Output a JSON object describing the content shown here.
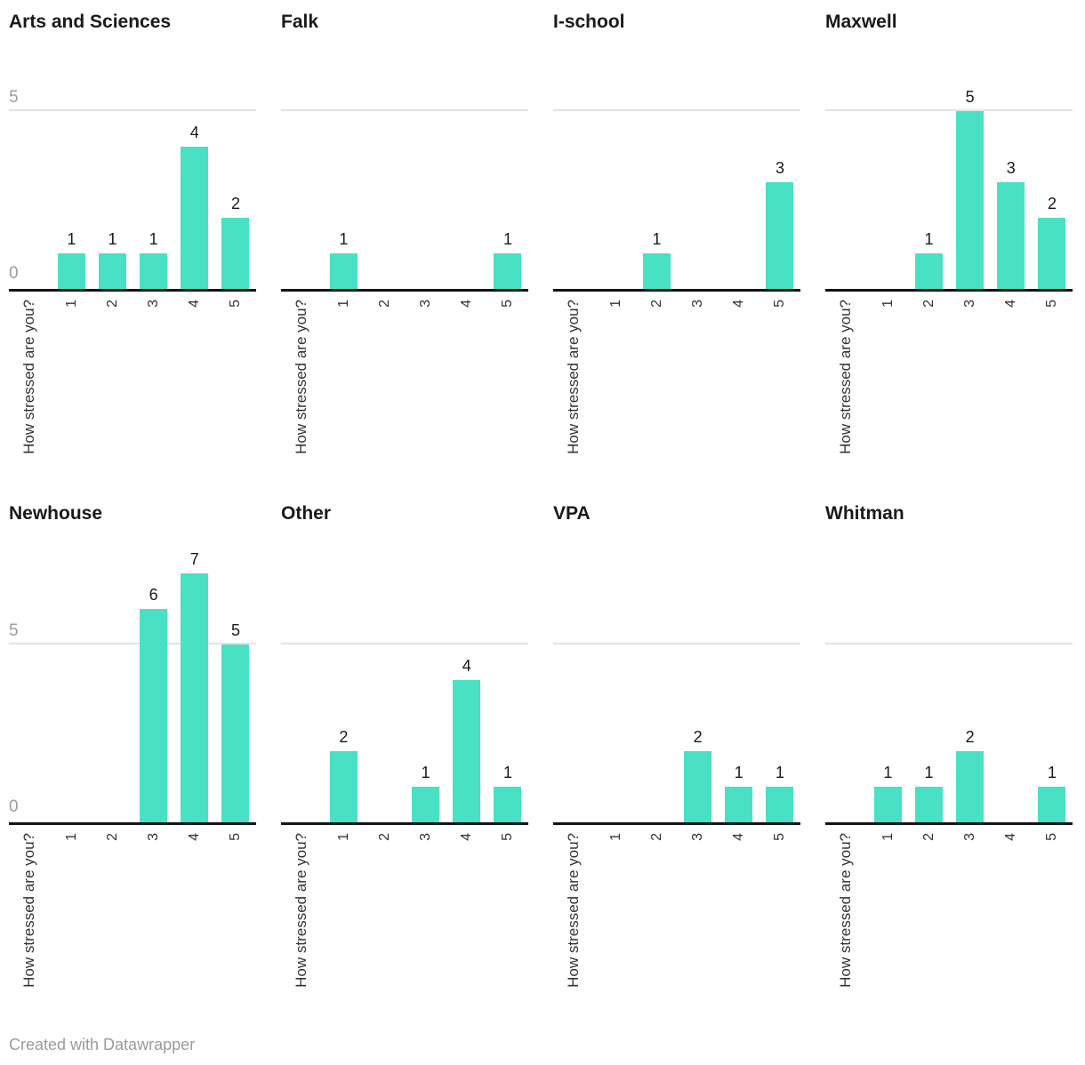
{
  "footer": {
    "text": "Created with Datawrapper"
  },
  "style": {
    "bar_color": "#48e1c4",
    "gridline_color": "#e3e3e3",
    "axis_line_color": "#141414",
    "y_label_color": "#9d9d9d",
    "tick_label_color": "#333333",
    "value_label_color": "#1a1a1a",
    "title_color": "#1a1a1a",
    "footer_color": "#9b9b9b",
    "background": "#ffffff"
  },
  "chart_data": [
    {
      "type": "bar",
      "title": "Arts and Sciences",
      "xlabel": "How stressed are you?",
      "categories": [
        "1",
        "2",
        "3",
        "4",
        "5"
      ],
      "values": [
        1,
        1,
        1,
        4,
        2
      ],
      "ylim": [
        0,
        5
      ],
      "gridlines": [
        5
      ],
      "show_y_labels": true,
      "y_labels": [
        "5",
        "0"
      ],
      "legend": "none"
    },
    {
      "type": "bar",
      "title": "Falk",
      "xlabel": "How stressed are you?",
      "categories": [
        "1",
        "2",
        "3",
        "4",
        "5"
      ],
      "values": [
        1,
        0,
        0,
        0,
        1
      ],
      "ylim": [
        0,
        5
      ],
      "gridlines": [
        5
      ],
      "show_y_labels": false,
      "y_labels": [],
      "legend": "none"
    },
    {
      "type": "bar",
      "title": "I-school",
      "xlabel": "How stressed are you?",
      "categories": [
        "1",
        "2",
        "3",
        "4",
        "5"
      ],
      "values": [
        0,
        1,
        0,
        0,
        3
      ],
      "ylim": [
        0,
        5
      ],
      "gridlines": [
        5
      ],
      "show_y_labels": false,
      "y_labels": [],
      "legend": "none"
    },
    {
      "type": "bar",
      "title": "Maxwell",
      "xlabel": "How stressed are you?",
      "categories": [
        "1",
        "2",
        "3",
        "4",
        "5"
      ],
      "values": [
        0,
        1,
        5,
        3,
        2
      ],
      "ylim": [
        0,
        5
      ],
      "gridlines": [
        5
      ],
      "show_y_labels": false,
      "y_labels": [],
      "legend": "none"
    },
    {
      "type": "bar",
      "title": "Newhouse",
      "xlabel": "How stressed are you?",
      "categories": [
        "1",
        "2",
        "3",
        "4",
        "5"
      ],
      "values": [
        0,
        0,
        6,
        7,
        5
      ],
      "ylim": [
        0,
        7
      ],
      "gridlines": [
        5
      ],
      "show_y_labels": true,
      "y_labels": [
        "5",
        "0"
      ],
      "legend": "none"
    },
    {
      "type": "bar",
      "title": "Other",
      "xlabel": "How stressed are you?",
      "categories": [
        "1",
        "2",
        "3",
        "4",
        "5"
      ],
      "values": [
        2,
        0,
        1,
        4,
        1
      ],
      "ylim": [
        0,
        7
      ],
      "gridlines": [
        5
      ],
      "show_y_labels": false,
      "y_labels": [],
      "legend": "none"
    },
    {
      "type": "bar",
      "title": "VPA",
      "xlabel": "How stressed are you?",
      "categories": [
        "1",
        "2",
        "3",
        "4",
        "5"
      ],
      "values": [
        0,
        0,
        2,
        1,
        1
      ],
      "ylim": [
        0,
        7
      ],
      "gridlines": [
        5
      ],
      "show_y_labels": false,
      "y_labels": [],
      "legend": "none"
    },
    {
      "type": "bar",
      "title": "Whitman",
      "xlabel": "How stressed are you?",
      "categories": [
        "1",
        "2",
        "3",
        "4",
        "5"
      ],
      "values": [
        1,
        1,
        2,
        0,
        1
      ],
      "ylim": [
        0,
        7
      ],
      "gridlines": [
        5
      ],
      "show_y_labels": false,
      "y_labels": [],
      "legend": "none"
    }
  ]
}
